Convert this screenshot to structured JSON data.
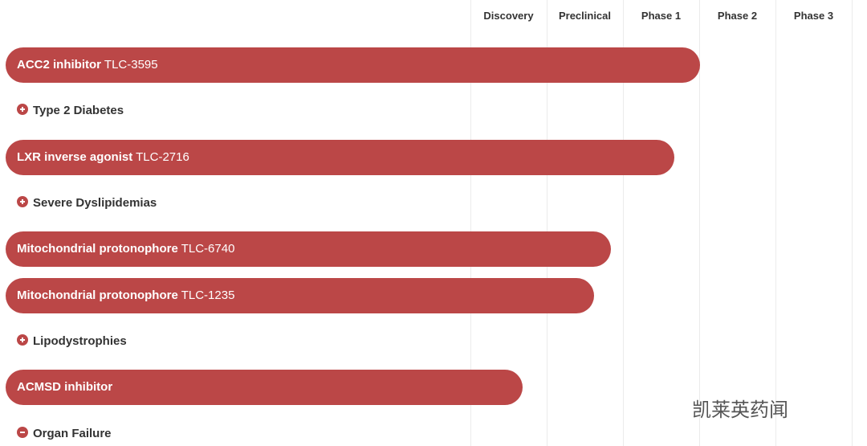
{
  "header": {
    "columns": [
      "Discovery",
      "Preclinical",
      "Phase 1",
      "Phase 2",
      "Phase 3"
    ]
  },
  "programs": [
    {
      "name": "ACC2 inhibitor",
      "code": "TLC-3595"
    },
    {
      "name": "LXR inverse agonist",
      "code": "TLC-2716"
    },
    {
      "name": "Mitochondrial protonophore",
      "code": "TLC-6740"
    },
    {
      "name": "Mitochondrial protonophore",
      "code": "TLC-1235"
    },
    {
      "name": "ACMSD inhibitor"
    }
  ],
  "indications": [
    "Type 2 Diabetes",
    "Severe Dyslipidemias",
    "Lipodystrophies",
    "Organ Failure"
  ],
  "watermark": "凯莱英药闻"
}
